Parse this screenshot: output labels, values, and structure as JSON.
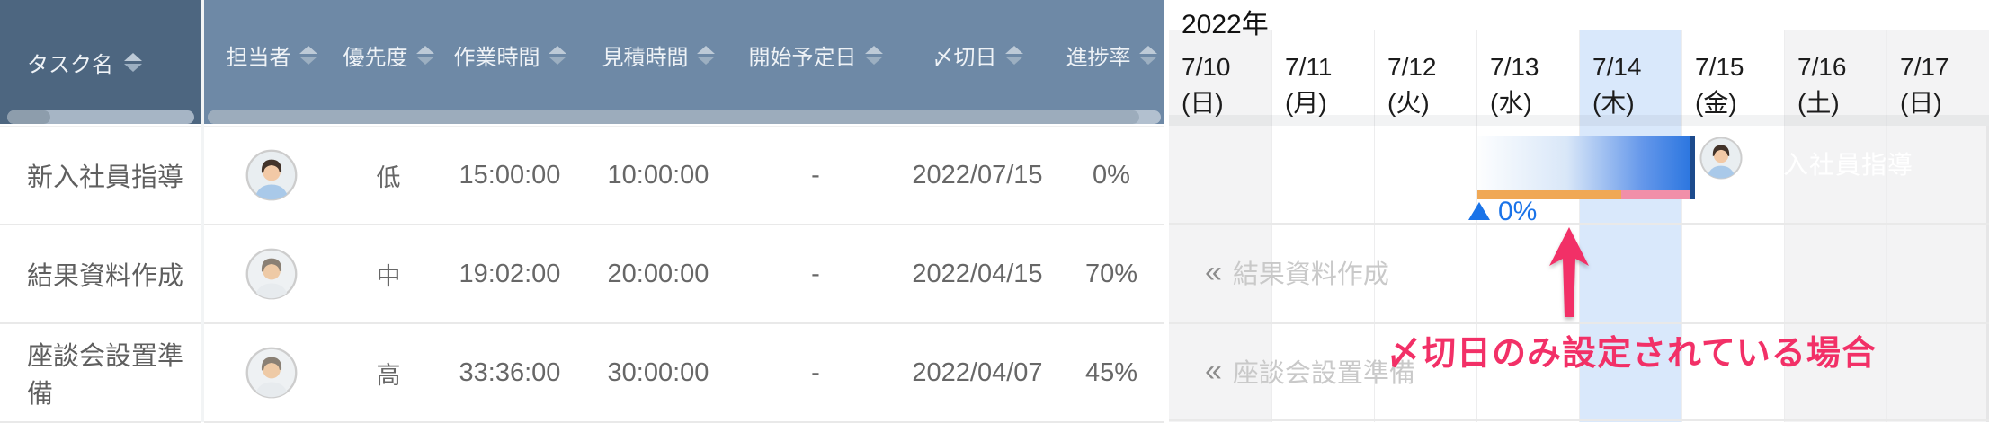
{
  "table": {
    "columns": [
      {
        "key": "task",
        "label": "タスク名",
        "sortable": true
      },
      {
        "key": "assignee",
        "label": "担当者",
        "sortable": true
      },
      {
        "key": "priority",
        "label": "優先度",
        "sortable": true
      },
      {
        "key": "work_time",
        "label": "作業時間",
        "sortable": true
      },
      {
        "key": "estimate_time",
        "label": "見積時間",
        "sortable": true
      },
      {
        "key": "start_date",
        "label": "開始予定日",
        "sortable": true
      },
      {
        "key": "deadline",
        "label": "〆切日",
        "sortable": true
      },
      {
        "key": "progress",
        "label": "進捗率",
        "sortable": true
      }
    ],
    "rows": [
      {
        "task": "新入社員指導",
        "assignee_avatar": "man-blue-shirt",
        "priority": "低",
        "work_time": "15:00:00",
        "estimate_time": "10:00:00",
        "start_date": "-",
        "deadline": "2022/07/15",
        "progress": "0%"
      },
      {
        "task": "結果資料作成",
        "assignee_avatar": "man-gray-hair",
        "priority": "中",
        "work_time": "19:02:00",
        "estimate_time": "20:00:00",
        "start_date": "-",
        "deadline": "2022/04/15",
        "progress": "70%"
      },
      {
        "task": "座談会設置準備",
        "assignee_avatar": "man-gray-hair",
        "priority": "高",
        "work_time": "33:36:00",
        "estimate_time": "30:00:00",
        "start_date": "-",
        "deadline": "2022/04/07",
        "progress": "45%"
      }
    ]
  },
  "gantt": {
    "year_label": "2022年",
    "days": [
      {
        "date": "7/10",
        "dow": "(日)",
        "type": "weekend"
      },
      {
        "date": "7/11",
        "dow": "(月)",
        "type": "weekday"
      },
      {
        "date": "7/12",
        "dow": "(火)",
        "type": "weekday"
      },
      {
        "date": "7/13",
        "dow": "(水)",
        "type": "weekday"
      },
      {
        "date": "7/14",
        "dow": "(木)",
        "type": "today"
      },
      {
        "date": "7/15",
        "dow": "(金)",
        "type": "weekday"
      },
      {
        "date": "7/16",
        "dow": "(土)",
        "type": "weekend"
      },
      {
        "date": "7/17",
        "dow": "(日)",
        "type": "weekend"
      }
    ],
    "bar": {
      "task_label": "新入社員指導",
      "progress_label": "0%",
      "deadline": "2022/07/15",
      "avatar": "man-blue-shirt"
    },
    "offscreen_tasks": [
      {
        "chevron": "«",
        "label": "結果資料作成"
      },
      {
        "chevron": "«",
        "label": "座談会設置準備"
      }
    ]
  },
  "annotation": {
    "text": "〆切日のみ設定されている場合"
  },
  "colors": {
    "header_dark": "#4d6680",
    "header_light": "#6e89a6",
    "today_highlight": "#d9e8fb",
    "weekend_bg": "#f3f3f4",
    "bar_blue": "#2d77e0",
    "deadline_navy": "#1c4a8c",
    "estimate_orange": "#f0a855",
    "overrun_pink": "#f18fa9",
    "progress_blue": "#1a73e8",
    "annotation_pink": "#f23067"
  }
}
